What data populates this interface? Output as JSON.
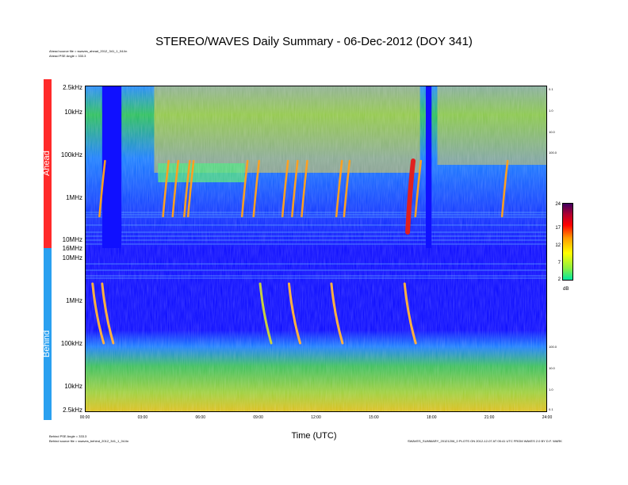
{
  "title": "STEREO/WAVES Daily Summary - 06-Dec-2012 (DOY 341)",
  "header_notes": {
    "ahead_source": "Ahead source file = swaves_ahead_2012_341_1_04.lin",
    "ahead_pse": "Ahead PSE Angle = 333.3"
  },
  "footer_notes": {
    "behind_pse": "Behind PSE Angle = 333.3",
    "behind_source": "Behind source file = swaves_behind_2012_341_1_04.lin",
    "right_note": "SWAVES_SUMMARY_20121206_0 PLOTS ON 2012-12-07 AT 05:41 UTC FROM WAVES 2.0 BY D.F. WARK"
  },
  "panels": {
    "ahead_label": "Ahead",
    "behind_label": "Behind",
    "colors": {
      "ahead": "#ff2a2a",
      "behind": "#2aa0f0",
      "background": "#1010ff"
    }
  },
  "chart_data": {
    "type": "heatmap",
    "title": "STEREO/WAVES Daily Summary - 06-Dec-2012 (DOY 341)",
    "xlabel": "Time (UTC)",
    "x_ticks": [
      "00:00",
      "03:00",
      "06:00",
      "09:00",
      "12:00",
      "15:00",
      "18:00",
      "21:00",
      "24:00"
    ],
    "xlim_hours": [
      0,
      24
    ],
    "ahead_y_ticks": [
      "2.5kHz",
      "10kHz",
      "100kHz",
      "1MHz",
      "10MHz",
      "16MHz"
    ],
    "behind_y_ticks": [
      "10MHz",
      "1MHz",
      "100kHz",
      "10kHz",
      "2.5kHz"
    ],
    "right_ticks_ahead": [
      "0.1",
      "1.0",
      "10.0",
      "100.0"
    ],
    "right_ticks_behind": [
      "100.0",
      "10.0",
      "1.0",
      "0.1"
    ],
    "colorbar": {
      "unit": "dB",
      "ticks": [
        "24",
        "17",
        "12",
        "7",
        "2"
      ]
    },
    "ahead_data_gaps_hours": [
      [
        0.9,
        1.9
      ],
      [
        17.7,
        18.0
      ]
    ],
    "ahead_bursts_start_hours": [
      0.8,
      4.1,
      4.6,
      5.2,
      5.4,
      8.2,
      8.8,
      10.3,
      10.8,
      11.3,
      13.1,
      13.5,
      16.8,
      17.2,
      21.7
    ],
    "behind_bursts_start_hours": [
      0.4,
      0.9,
      9.1,
      10.6,
      12.8,
      16.6
    ]
  }
}
